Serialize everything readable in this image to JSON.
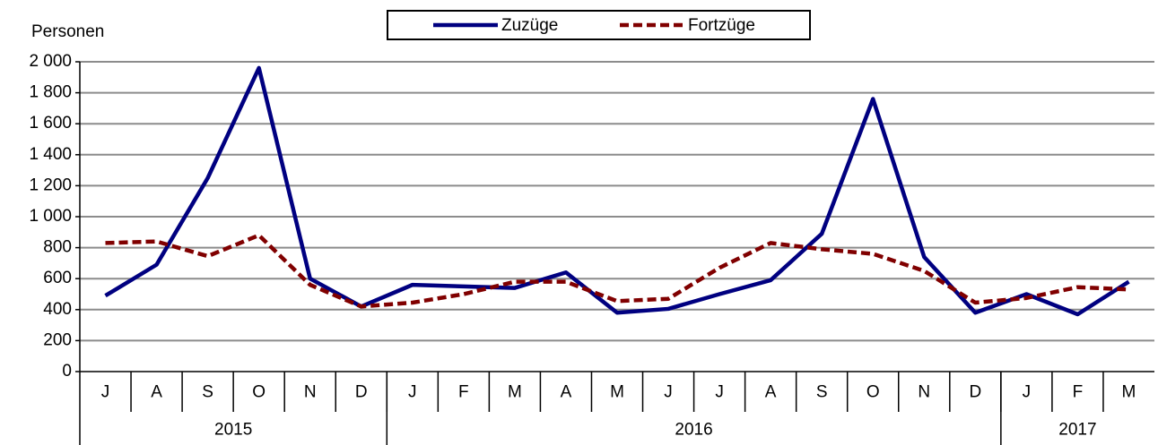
{
  "chart_data": {
    "type": "line",
    "y_label": "Personen",
    "categories": [
      "J",
      "A",
      "S",
      "O",
      "N",
      "D",
      "J",
      "F",
      "M",
      "A",
      "M",
      "J",
      "J",
      "A",
      "S",
      "O",
      "N",
      "D",
      "J",
      "F",
      "M"
    ],
    "category_groups": [
      {
        "name": "2015",
        "count": 6
      },
      {
        "name": "2016",
        "count": 12
      },
      {
        "name": "2017",
        "count": 3
      }
    ],
    "series": [
      {
        "name": "Zuzüge",
        "color": "#000080",
        "dashed": false,
        "values": [
          490,
          690,
          1250,
          1960,
          600,
          420,
          560,
          550,
          540,
          640,
          380,
          405,
          500,
          590,
          890,
          1760,
          740,
          380,
          500,
          370,
          580
        ]
      },
      {
        "name": "Fortzüge",
        "color": "#800000",
        "dashed": true,
        "values": [
          830,
          840,
          745,
          880,
          560,
          420,
          445,
          500,
          580,
          580,
          455,
          470,
          670,
          830,
          790,
          760,
          650,
          445,
          475,
          545,
          530
        ]
      }
    ],
    "ylim": [
      0,
      2000
    ],
    "yticks": [
      0,
      200,
      400,
      600,
      800,
      {
        "value": 1000,
        "label": "1 000"
      },
      {
        "value": 1200,
        "label": "1 200"
      },
      {
        "value": 1400,
        "label": "1 400"
      },
      {
        "value": 1600,
        "label": "1 600"
      },
      {
        "value": 1800,
        "label": "1 800"
      },
      {
        "value": 2000,
        "label": "2 000"
      }
    ],
    "grid": true,
    "legend": "top"
  }
}
